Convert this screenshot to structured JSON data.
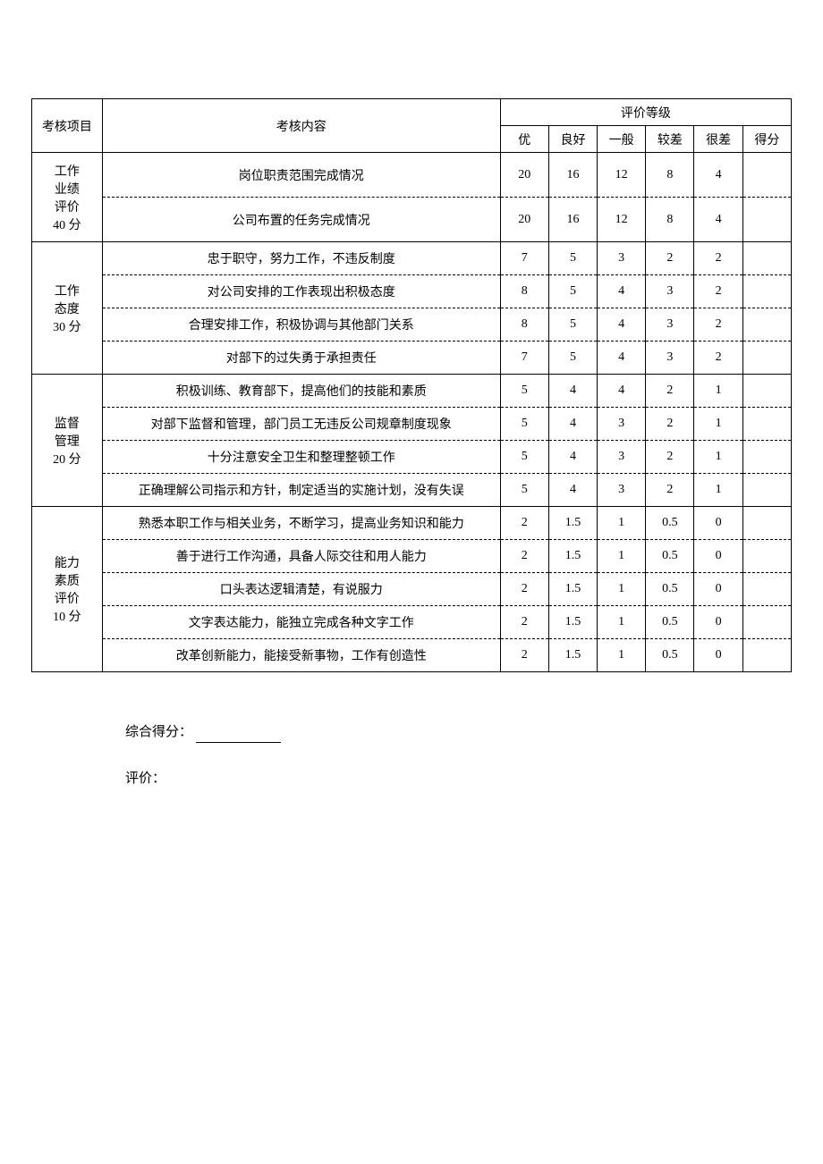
{
  "table": {
    "type": "table",
    "background_color": "#ffffff",
    "text_color": "#000000",
    "border_color": "#000000",
    "font_family": "SimSun",
    "base_fontsize": 14,
    "header": {
      "category": "考核项目",
      "content": "考核内容",
      "rating_group": "评价等级",
      "levels": [
        "优",
        "良好",
        "一般",
        "较差",
        "很差",
        "得分"
      ]
    },
    "sections": [
      {
        "category": "工作\n业绩\n评价\n40 分",
        "rows": [
          {
            "content": "岗位职责范围完成情况",
            "scores": [
              "20",
              "16",
              "12",
              "8",
              "4",
              ""
            ],
            "tall": true
          },
          {
            "content": "公司布置的任务完成情况",
            "scores": [
              "20",
              "16",
              "12",
              "8",
              "4",
              ""
            ],
            "tall": true
          }
        ]
      },
      {
        "category": "工作\n态度\n30 分",
        "rows": [
          {
            "content": "忠于职守，努力工作，不违反制度",
            "scores": [
              "7",
              "5",
              "3",
              "2",
              "2",
              ""
            ]
          },
          {
            "content": "对公司安排的工作表现出积极态度",
            "scores": [
              "8",
              "5",
              "4",
              "3",
              "2",
              ""
            ]
          },
          {
            "content": "合理安排工作，积极协调与其他部门关系",
            "scores": [
              "8",
              "5",
              "4",
              "3",
              "2",
              ""
            ]
          },
          {
            "content": "对部下的过失勇于承担责任",
            "scores": [
              "7",
              "5",
              "4",
              "3",
              "2",
              ""
            ]
          }
        ]
      },
      {
        "category": "监督\n管理\n20 分",
        "rows": [
          {
            "content": "积极训练、教育部下，提高他们的技能和素质",
            "scores": [
              "5",
              "4",
              "4",
              "2",
              "1",
              ""
            ]
          },
          {
            "content": "对部下监督和管理，部门员工无违反公司规章制度现象",
            "scores": [
              "5",
              "4",
              "3",
              "2",
              "1",
              ""
            ]
          },
          {
            "content": "十分注意安全卫生和整理整顿工作",
            "scores": [
              "5",
              "4",
              "3",
              "2",
              "1",
              ""
            ]
          },
          {
            "content": "正确理解公司指示和方针，制定适当的实施计划，没有失误",
            "scores": [
              "5",
              "4",
              "3",
              "2",
              "1",
              ""
            ]
          }
        ]
      },
      {
        "category": "能力\n素质\n评价\n10 分",
        "rows": [
          {
            "content": "熟悉本职工作与相关业务，不断学习，提高业务知识和能力",
            "scores": [
              "2",
              "1.5",
              "1",
              "0.5",
              "0",
              ""
            ]
          },
          {
            "content": "善于进行工作沟通，具备人际交往和用人能力",
            "scores": [
              "2",
              "1.5",
              "1",
              "0.5",
              "0",
              ""
            ]
          },
          {
            "content": "口头表达逻辑清楚，有说服力",
            "scores": [
              "2",
              "1.5",
              "1",
              "0.5",
              "0",
              ""
            ]
          },
          {
            "content": "文字表达能力，能独立完成各种文字工作",
            "scores": [
              "2",
              "1.5",
              "1",
              "0.5",
              "0",
              ""
            ]
          },
          {
            "content": "改革创新能力，能接受新事物，工作有创造性",
            "scores": [
              "2",
              "1.5",
              "1",
              "0.5",
              "0",
              ""
            ]
          }
        ]
      }
    ]
  },
  "footer": {
    "total_label": "综合得分：",
    "total_value": "",
    "eval_label": "评价："
  }
}
